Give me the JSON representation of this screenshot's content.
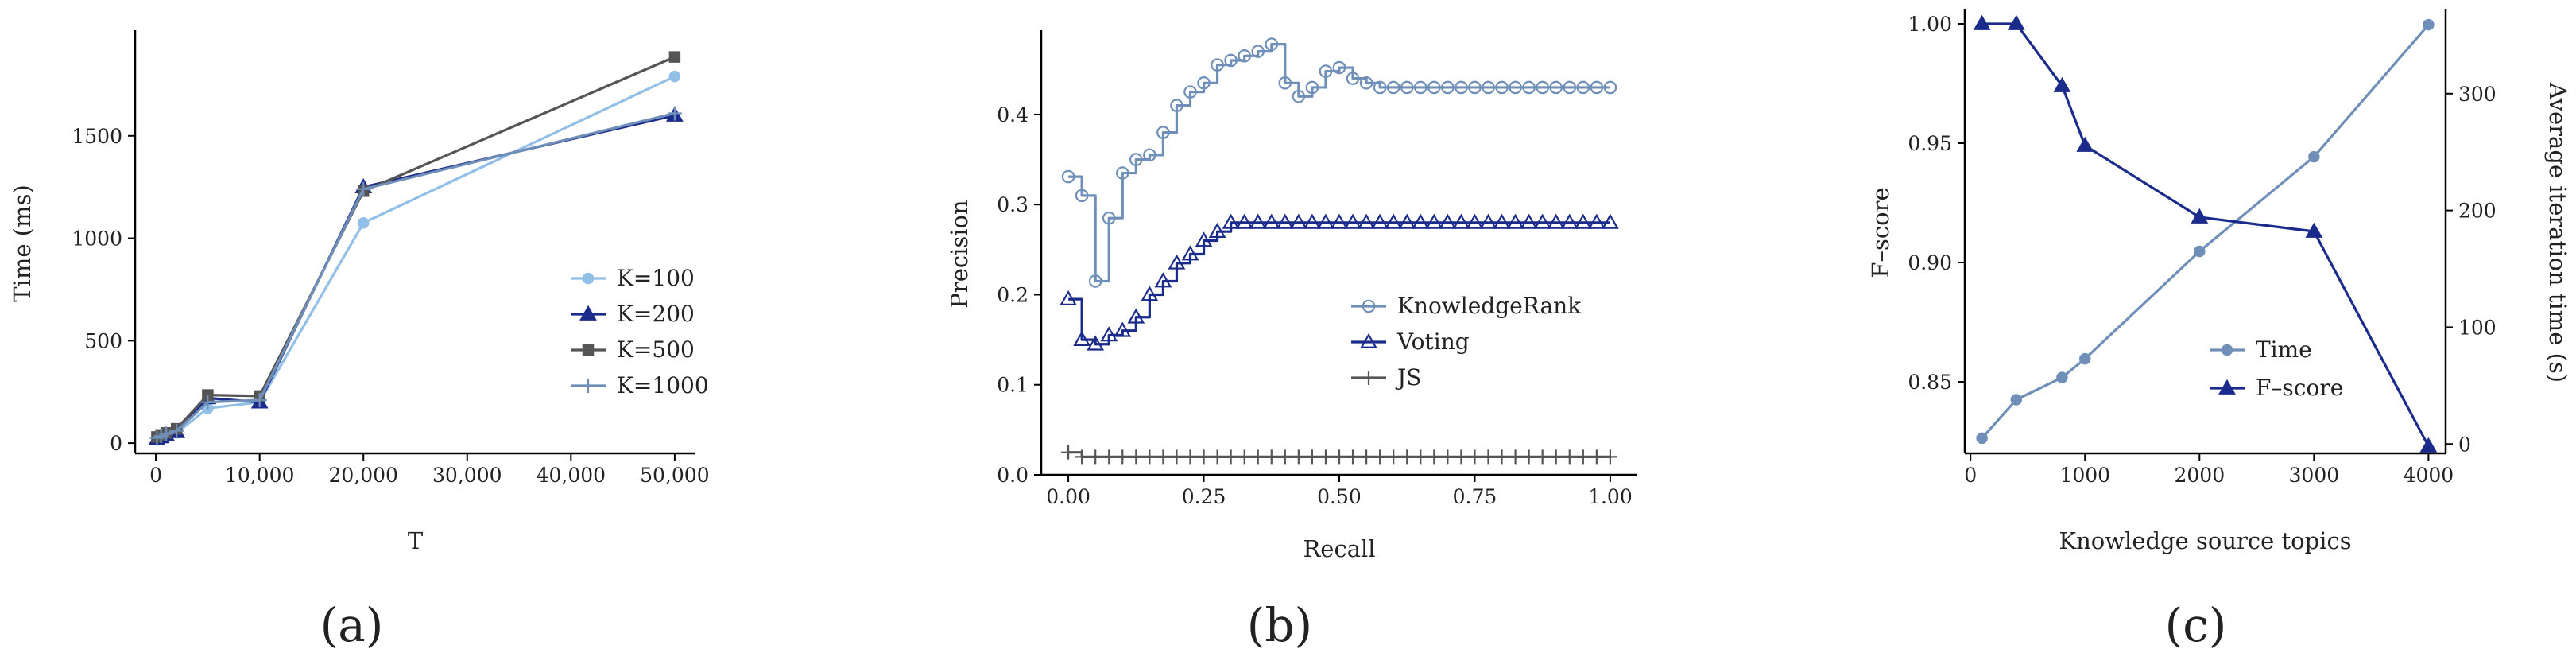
{
  "chart_data": [
    {
      "type": "line",
      "panel_label": "(a)",
      "xlabel": "T",
      "ylabel": "Time (ms)",
      "xlim": [
        -2000,
        52000
      ],
      "ylim": [
        -50,
        2000
      ],
      "xticks": [
        0,
        10000,
        20000,
        30000,
        40000,
        50000
      ],
      "xtick_labels": [
        "0",
        "10,000",
        "20,000",
        "30,000",
        "40,000",
        "50,000"
      ],
      "yticks": [
        0,
        500,
        1000,
        1500
      ],
      "ytick_labels": [
        "0",
        "500",
        "1000",
        "1500"
      ],
      "legend": "center-right",
      "series": [
        {
          "name": "K=100",
          "color": "#92bfe8",
          "marker": "circle",
          "x": [
            100,
            500,
            1000,
            2000,
            5000,
            10000,
            20000,
            50000
          ],
          "y": [
            15,
            25,
            35,
            50,
            170,
            200,
            1075,
            1790
          ]
        },
        {
          "name": "K=200",
          "color": "#1a2b8c",
          "marker": "triangle",
          "x": [
            100,
            500,
            1000,
            2000,
            5000,
            10000,
            20000,
            50000
          ],
          "y": [
            20,
            30,
            40,
            55,
            220,
            200,
            1250,
            1600
          ]
        },
        {
          "name": "K=500",
          "color": "#555555",
          "marker": "square",
          "x": [
            100,
            500,
            1000,
            2000,
            5000,
            10000,
            20000,
            50000
          ],
          "y": [
            30,
            40,
            50,
            70,
            235,
            230,
            1230,
            1885
          ]
        },
        {
          "name": "K=1000",
          "color": "#6f8fb8",
          "marker": "plus",
          "x": [
            100,
            500,
            1000,
            2000,
            5000,
            10000,
            20000,
            50000
          ],
          "y": [
            25,
            35,
            45,
            60,
            200,
            210,
            1240,
            1610
          ]
        }
      ]
    },
    {
      "type": "line",
      "panel_label": "(b)",
      "xlabel": "Recall",
      "ylabel": "Precision",
      "xlim": [
        -0.05,
        1.05
      ],
      "ylim": [
        0,
        0.49
      ],
      "xticks": [
        0,
        0.25,
        0.5,
        0.75,
        1
      ],
      "xtick_labels": [
        "0.00",
        "0.25",
        "0.50",
        "0.75",
        "1.00"
      ],
      "yticks": [
        0,
        0.1,
        0.2,
        0.3,
        0.4
      ],
      "ytick_labels": [
        "0.0",
        "0.1",
        "0.2",
        "0.3",
        "0.4"
      ],
      "legend": "center-right",
      "series": [
        {
          "name": "KnowledgeRank",
          "color": "#6f8fb8",
          "marker": "circle",
          "x": [
            0,
            0.025,
            0.05,
            0.075,
            0.1,
            0.125,
            0.15,
            0.175,
            0.2,
            0.225,
            0.25,
            0.275,
            0.3,
            0.325,
            0.35,
            0.375,
            0.4,
            0.425,
            0.45,
            0.475,
            0.5,
            0.525,
            0.55,
            0.575,
            0.6,
            0.625,
            0.65,
            0.675,
            0.7,
            0.725,
            0.75,
            0.775,
            0.8,
            0.825,
            0.85,
            0.875,
            0.9,
            0.925,
            0.95,
            0.975,
            1.0
          ],
          "y": [
            0.331,
            0.31,
            0.215,
            0.285,
            0.335,
            0.35,
            0.355,
            0.38,
            0.41,
            0.425,
            0.435,
            0.455,
            0.46,
            0.465,
            0.47,
            0.478,
            0.435,
            0.42,
            0.43,
            0.448,
            0.452,
            0.44,
            0.435,
            0.43,
            0.43,
            0.43,
            0.43,
            0.43,
            0.43,
            0.43,
            0.43,
            0.43,
            0.43,
            0.43,
            0.43,
            0.43,
            0.43,
            0.43,
            0.43,
            0.43,
            0.43
          ]
        },
        {
          "name": "Voting",
          "color": "#1a2b8c",
          "marker": "triangle",
          "x": [
            0,
            0.025,
            0.05,
            0.075,
            0.1,
            0.125,
            0.15,
            0.175,
            0.2,
            0.225,
            0.25,
            0.275,
            0.3,
            0.325,
            0.35,
            0.375,
            0.4,
            0.425,
            0.45,
            0.475,
            0.5,
            0.525,
            0.55,
            0.575,
            0.6,
            0.625,
            0.65,
            0.675,
            0.7,
            0.725,
            0.75,
            0.775,
            0.8,
            0.825,
            0.85,
            0.875,
            0.9,
            0.925,
            0.95,
            0.975,
            1.0
          ],
          "y": [
            0.195,
            0.15,
            0.145,
            0.155,
            0.16,
            0.175,
            0.2,
            0.215,
            0.235,
            0.245,
            0.26,
            0.27,
            0.28,
            0.28,
            0.28,
            0.28,
            0.28,
            0.28,
            0.28,
            0.28,
            0.28,
            0.28,
            0.28,
            0.28,
            0.28,
            0.28,
            0.28,
            0.28,
            0.28,
            0.28,
            0.28,
            0.28,
            0.28,
            0.28,
            0.28,
            0.28,
            0.28,
            0.28,
            0.28,
            0.28,
            0.28
          ]
        },
        {
          "name": "JS",
          "color": "#555555",
          "marker": "plus",
          "x": [
            0,
            0.025,
            0.05,
            0.075,
            0.1,
            0.125,
            0.15,
            0.175,
            0.2,
            0.225,
            0.25,
            0.275,
            0.3,
            0.325,
            0.35,
            0.375,
            0.4,
            0.425,
            0.45,
            0.475,
            0.5,
            0.525,
            0.55,
            0.575,
            0.6,
            0.625,
            0.65,
            0.675,
            0.7,
            0.725,
            0.75,
            0.775,
            0.8,
            0.825,
            0.85,
            0.875,
            0.9,
            0.925,
            0.95,
            0.975,
            1.0
          ],
          "y": [
            0.025,
            0.02,
            0.02,
            0.02,
            0.02,
            0.02,
            0.02,
            0.02,
            0.02,
            0.02,
            0.02,
            0.02,
            0.02,
            0.02,
            0.02,
            0.02,
            0.02,
            0.02,
            0.02,
            0.02,
            0.02,
            0.02,
            0.02,
            0.02,
            0.02,
            0.02,
            0.02,
            0.02,
            0.02,
            0.02,
            0.02,
            0.02,
            0.02,
            0.02,
            0.02,
            0.02,
            0.02,
            0.02,
            0.02,
            0.02,
            0.02
          ]
        }
      ]
    },
    {
      "type": "line",
      "panel_label": "(c)",
      "xlabel": "Knowledge source topics",
      "ylabel": "F–score",
      "ylabel_right": "Average iteration time (s)",
      "xlim": [
        -50,
        4150
      ],
      "ylim": [
        0.82,
        1.005
      ],
      "ylim_right": [
        -8,
        370
      ],
      "xticks": [
        0,
        1000,
        2000,
        3000,
        4000
      ],
      "xtick_labels": [
        "0",
        "1000",
        "2000",
        "3000",
        "4000"
      ],
      "yticks": [
        0.85,
        0.9,
        0.95,
        1.0
      ],
      "ytick_labels": [
        "0.85",
        "0.90",
        "0.95",
        "1.00"
      ],
      "yticks_right": [
        0,
        100,
        200,
        300
      ],
      "ytick_labels_right": [
        "0",
        "100",
        "200",
        "300"
      ],
      "legend": "center",
      "series": [
        {
          "name": "Time",
          "axis": "right",
          "color": "#6f8fb8",
          "marker": "circle",
          "x": [
            100,
            400,
            800,
            1000,
            2000,
            3000,
            4000
          ],
          "y": [
            5,
            38,
            57,
            73,
            165,
            246,
            359
          ]
        },
        {
          "name": "F–score",
          "axis": "left",
          "color": "#1a2b8c",
          "marker": "triangle",
          "x": [
            100,
            400,
            800,
            1000,
            2000,
            3000,
            4000
          ],
          "y": [
            1.0,
            1.0,
            0.974,
            0.949,
            0.919,
            0.913,
            0.823
          ]
        }
      ]
    }
  ]
}
